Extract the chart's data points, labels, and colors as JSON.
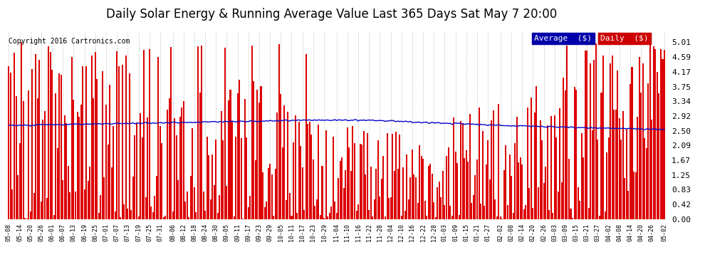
{
  "title": "Daily Solar Energy & Running Average Value Last 365 Days Sat May 7 20:00",
  "copyright": "Copyright 2016 Cartronics.com",
  "ylabel_right": [
    "5.01",
    "4.59",
    "4.17",
    "3.75",
    "3.34",
    "2.92",
    "2.50",
    "2.09",
    "1.67",
    "1.25",
    "0.83",
    "0.42",
    "0.00"
  ],
  "yticks": [
    5.01,
    4.59,
    4.17,
    3.75,
    3.34,
    2.92,
    2.5,
    2.09,
    1.67,
    1.25,
    0.83,
    0.42,
    0.0
  ],
  "ylim": [
    0,
    5.3
  ],
  "bar_color": "#dd0000",
  "line_color": "#0000cc",
  "bg_color": "#ffffff",
  "grid_color": "#bbbbbb",
  "legend_avg_color": "#0000aa",
  "legend_daily_color": "#cc0000",
  "title_fontsize": 12,
  "bar_width": 0.8,
  "x_labels": [
    "05-08",
    "05-14",
    "05-20",
    "05-26",
    "06-01",
    "06-07",
    "06-13",
    "06-19",
    "06-25",
    "07-01",
    "07-07",
    "07-13",
    "07-19",
    "07-25",
    "07-31",
    "08-06",
    "08-12",
    "08-18",
    "08-24",
    "08-30",
    "09-05",
    "09-11",
    "09-17",
    "09-23",
    "09-29",
    "10-05",
    "10-11",
    "10-17",
    "10-23",
    "10-29",
    "11-04",
    "11-10",
    "11-16",
    "11-22",
    "11-28",
    "12-04",
    "12-10",
    "12-16",
    "12-22",
    "12-28",
    "01-03",
    "01-09",
    "01-15",
    "01-21",
    "01-27",
    "02-02",
    "02-08",
    "02-14",
    "02-20",
    "02-26",
    "03-03",
    "03-09",
    "03-15",
    "03-21",
    "03-27",
    "04-02",
    "04-08",
    "04-14",
    "04-20",
    "04-26",
    "05-02"
  ],
  "n_days": 365
}
